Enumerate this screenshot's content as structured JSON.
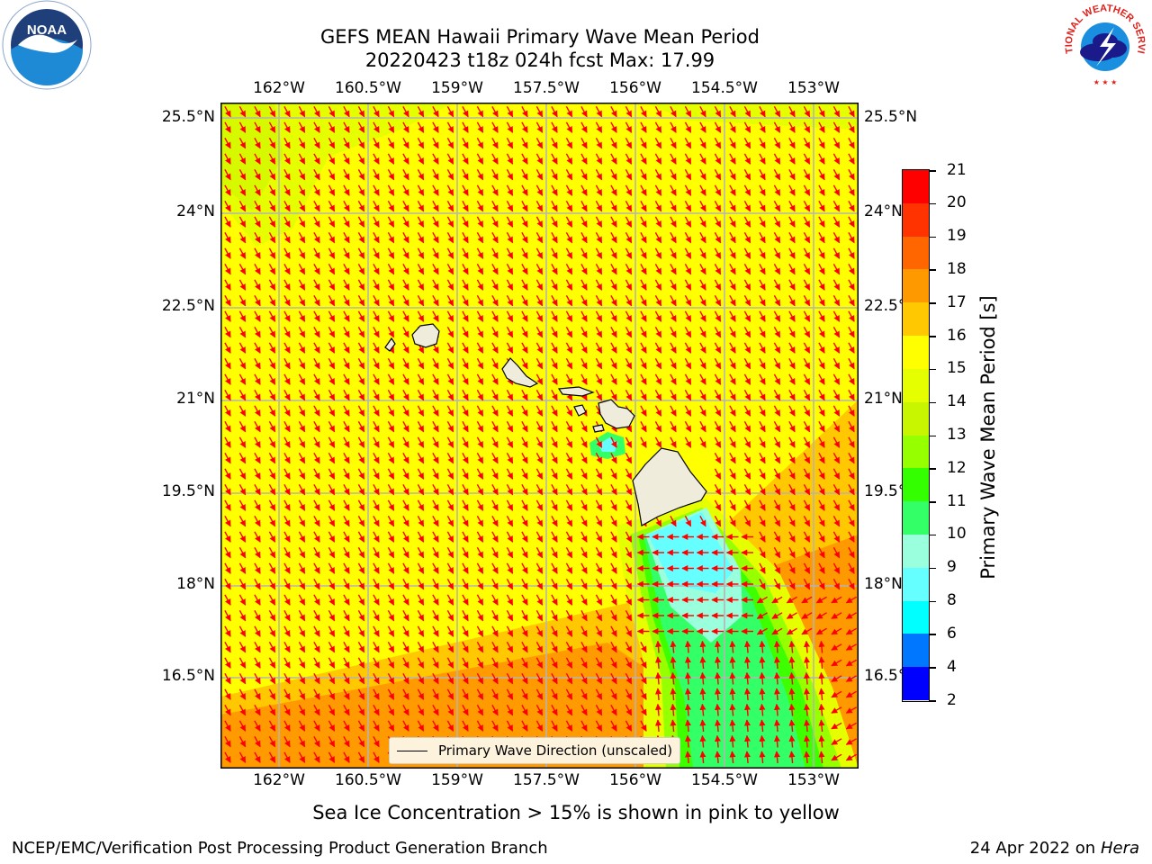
{
  "title": {
    "line1": "GEFS MEAN Hawaii Primary Wave Mean Period",
    "line2": "20220423 t18z 024h fcst   Max: 17.99"
  },
  "axes": {
    "lon_labels": [
      "162°W",
      "160.5°W",
      "159°W",
      "157.5°W",
      "156°W",
      "154.5°W",
      "153°W"
    ],
    "lat_labels": [
      "25.5°N",
      "24°N",
      "22.5°N",
      "21°N",
      "19.5°N",
      "18°N",
      "16.5°N"
    ],
    "lon_range": [
      -163.0,
      -152.25
    ],
    "lat_range": [
      15.0,
      25.75
    ]
  },
  "colorbar": {
    "label": "Primary Wave Mean Period [s]",
    "ticks": [
      "21",
      "20",
      "19",
      "18",
      "17",
      "16",
      "15",
      "14",
      "13",
      "12",
      "11",
      "10",
      "9",
      "8",
      "6",
      "4",
      "2"
    ],
    "colors": [
      "#ff0000",
      "#ff3300",
      "#ff6600",
      "#ff9900",
      "#ffc800",
      "#ffff00",
      "#e6ff00",
      "#c8f500",
      "#96ff00",
      "#33ff00",
      "#33ff66",
      "#99ffdd",
      "#66ffff",
      "#00ffff",
      "#0077ff",
      "#0000ff"
    ]
  },
  "legend": {
    "label": "Primary Wave Direction (unscaled)"
  },
  "logos": {
    "left": "NOAA",
    "right": "NATIONAL WEATHER SERVICE"
  },
  "footer": {
    "note": "Sea Ice Concentration > 15% is shown in pink to yellow",
    "left": "NCEP/EMC/Verification Post Processing Product Generation Branch",
    "date": "24 Apr 2022 on ",
    "machine": "Hera"
  }
}
